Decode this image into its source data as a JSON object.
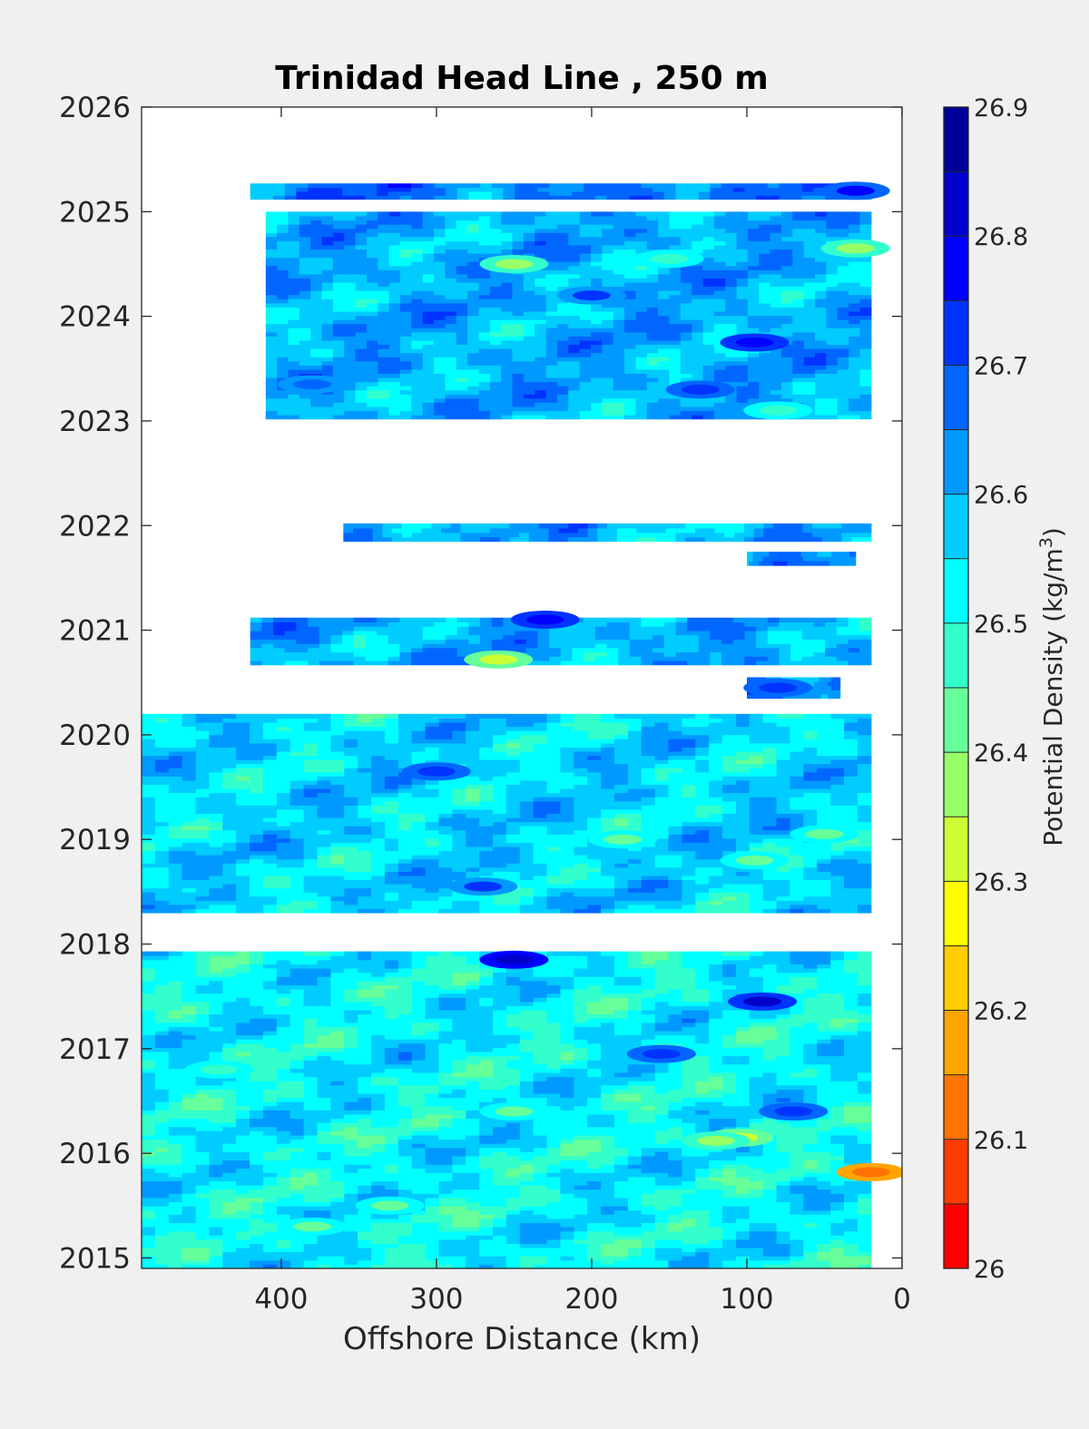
{
  "chart_data": {
    "type": "heatmap",
    "title": "Trinidad Head Line , 250 m",
    "xlabel": "Offshore Distance (km)",
    "ylabel": "",
    "x_reversed": true,
    "xlim": [
      490,
      0
    ],
    "ylim": [
      2014.9,
      2026
    ],
    "x_ticks": [
      400,
      300,
      200,
      100,
      0
    ],
    "y_ticks": [
      2015,
      2016,
      2017,
      2018,
      2019,
      2020,
      2021,
      2022,
      2023,
      2024,
      2025,
      2026
    ],
    "colorbar": {
      "label": "Potential Density (kg/m3)",
      "label_main": "Potential Density (kg/m",
      "label_sup": "3",
      "label_end": ")",
      "range": [
        26.0,
        26.9
      ],
      "ticks": [
        26,
        26.1,
        26.2,
        26.3,
        26.4,
        26.5,
        26.6,
        26.7,
        26.8,
        26.9
      ],
      "levels": [
        26.0,
        26.05,
        26.1,
        26.15,
        26.2,
        26.25,
        26.3,
        26.35,
        26.4,
        26.45,
        26.5,
        26.55,
        26.6,
        26.65,
        26.7,
        26.75,
        26.8,
        26.85,
        26.9
      ],
      "colors": [
        "#ff0000",
        "#ff3c00",
        "#ff7300",
        "#ffa500",
        "#ffcc00",
        "#ffff00",
        "#ccff33",
        "#99ff66",
        "#66ff99",
        "#33ffcc",
        "#00ffff",
        "#00ccff",
        "#0099ff",
        "#0066ff",
        "#0033ff",
        "#0000ff",
        "#0000cc",
        "#000099"
      ]
    },
    "bands": [
      {
        "t0": 2025.12,
        "t1": 2025.27,
        "x_start": 420,
        "x_end": 20,
        "base": 26.65
      },
      {
        "t0": 2023.02,
        "t1": 2025.0,
        "x_start": 410,
        "x_end": 20,
        "base": 26.6
      },
      {
        "t0": 2021.85,
        "t1": 2022.02,
        "x_start": 360,
        "x_end": 20,
        "base": 26.6
      },
      {
        "t0": 2021.62,
        "t1": 2021.75,
        "x_start": 100,
        "x_end": 30,
        "base": 26.63
      },
      {
        "t0": 2020.67,
        "t1": 2021.12,
        "x_start": 420,
        "x_end": 20,
        "base": 26.6
      },
      {
        "t0": 2020.35,
        "t1": 2020.55,
        "x_start": 100,
        "x_end": 40,
        "base": 26.65
      },
      {
        "t0": 2018.3,
        "t1": 2020.2,
        "x_start": 490,
        "x_end": 20,
        "base": 26.56
      },
      {
        "t0": 2014.9,
        "t1": 2017.93,
        "x_start": 490,
        "x_end": 20,
        "base": 26.53
      }
    ],
    "features": [
      {
        "x": 20,
        "t": 2015.82,
        "value": 26.1
      },
      {
        "x": 105,
        "t": 2016.15,
        "value": 26.33
      },
      {
        "x": 120,
        "t": 2016.12,
        "value": 26.38
      },
      {
        "x": 250,
        "t": 2016.4,
        "value": 26.42
      },
      {
        "x": 330,
        "t": 2015.5,
        "value": 26.42
      },
      {
        "x": 380,
        "t": 2015.3,
        "value": 26.43
      },
      {
        "x": 440,
        "t": 2016.8,
        "value": 26.45
      },
      {
        "x": 260,
        "t": 2020.72,
        "value": 26.33
      },
      {
        "x": 250,
        "t": 2024.5,
        "value": 26.4
      },
      {
        "x": 30,
        "t": 2024.65,
        "value": 26.38
      },
      {
        "x": 180,
        "t": 2019.0,
        "value": 26.43
      },
      {
        "x": 95,
        "t": 2018.8,
        "value": 26.42
      },
      {
        "x": 50,
        "t": 2019.05,
        "value": 26.43
      },
      {
        "x": 150,
        "t": 2024.55,
        "value": 26.45
      },
      {
        "x": 80,
        "t": 2023.1,
        "value": 26.46
      },
      {
        "x": 250,
        "t": 2017.85,
        "value": 26.83
      },
      {
        "x": 90,
        "t": 2017.45,
        "value": 26.8
      },
      {
        "x": 95,
        "t": 2023.75,
        "value": 26.78
      },
      {
        "x": 155,
        "t": 2016.95,
        "value": 26.72
      },
      {
        "x": 70,
        "t": 2016.4,
        "value": 26.72
      },
      {
        "x": 230,
        "t": 2021.1,
        "value": 26.78
      },
      {
        "x": 30,
        "t": 2025.2,
        "value": 26.75
      },
      {
        "x": 80,
        "t": 2020.45,
        "value": 26.72
      },
      {
        "x": 300,
        "t": 2019.65,
        "value": 26.72
      },
      {
        "x": 200,
        "t": 2024.2,
        "value": 26.7
      },
      {
        "x": 270,
        "t": 2018.55,
        "value": 26.7
      },
      {
        "x": 380,
        "t": 2023.35,
        "value": 26.68
      },
      {
        "x": 130,
        "t": 2023.3,
        "value": 26.72
      }
    ]
  }
}
